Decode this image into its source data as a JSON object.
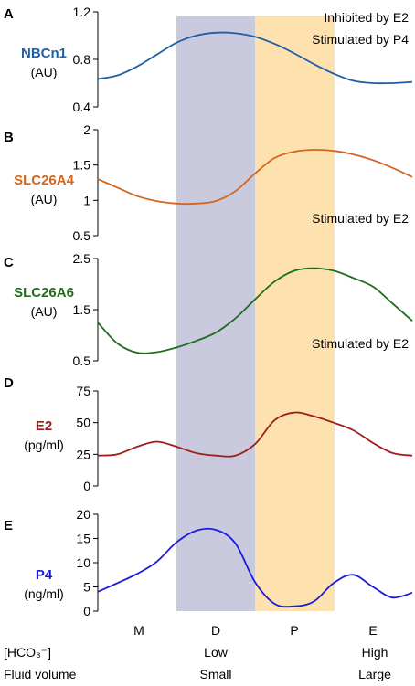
{
  "chart_data": {
    "type": "line",
    "xlabel": "",
    "x_categories": [
      "M",
      "D",
      "P",
      "E"
    ],
    "shaded_regions": [
      {
        "phase": "D",
        "color": "#b4b4d2"
      },
      {
        "phase": "P",
        "color": "#fcd896"
      }
    ],
    "bottom_rows": [
      {
        "label": "[HCO₃⁻]",
        "values": [
          "",
          "Low",
          "",
          "High"
        ]
      },
      {
        "label": "Fluid volume",
        "values": [
          "",
          "Small",
          "",
          "Large"
        ]
      }
    ],
    "panels": [
      {
        "letter": "A",
        "name": "NBCn1",
        "unit": "(AU)",
        "color": "#1f5fa8",
        "ylim": [
          0.4,
          1.2
        ],
        "yticks": [
          0.4,
          0.8,
          1.2
        ],
        "annotations": [
          "Inhibited  by E2",
          "Stimulated by P4"
        ],
        "x": [
          0,
          0.25,
          0.5,
          0.75,
          1.0,
          1.25,
          1.5,
          1.75,
          2.0,
          2.25,
          2.5,
          2.75,
          3.0,
          3.25,
          3.5,
          3.75,
          4.0
        ],
        "y": [
          0.635,
          0.665,
          0.74,
          0.84,
          0.94,
          1.0,
          1.025,
          1.02,
          0.99,
          0.93,
          0.85,
          0.76,
          0.68,
          0.62,
          0.6,
          0.6,
          0.61
        ]
      },
      {
        "letter": "B",
        "name": "SLC26A4",
        "unit": "(AU)",
        "color": "#d4651e",
        "ylim": [
          0.5,
          2.0
        ],
        "yticks": [
          0.5,
          1.0,
          1.5,
          2.0
        ],
        "annotations": [
          "Stimulated by E2"
        ],
        "x": [
          0,
          0.25,
          0.5,
          0.75,
          1.0,
          1.25,
          1.5,
          1.75,
          2.0,
          2.25,
          2.5,
          2.75,
          3.0,
          3.25,
          3.5,
          3.75,
          4.0
        ],
        "y": [
          1.3,
          1.18,
          1.06,
          0.99,
          0.955,
          0.955,
          0.99,
          1.13,
          1.38,
          1.6,
          1.69,
          1.715,
          1.7,
          1.65,
          1.57,
          1.46,
          1.33
        ]
      },
      {
        "letter": "C",
        "name": "SLC26A6",
        "unit": "(AU)",
        "color": "#1f6b1f",
        "ylim": [
          0.5,
          2.5
        ],
        "yticks": [
          0.5,
          1.5,
          2.5
        ],
        "annotations": [
          "Stimulated by E2"
        ],
        "x": [
          0,
          0.25,
          0.5,
          0.75,
          1.0,
          1.25,
          1.5,
          1.75,
          2.0,
          2.25,
          2.5,
          2.75,
          3.0,
          3.25,
          3.5,
          3.75,
          4.0
        ],
        "y": [
          1.25,
          0.84,
          0.66,
          0.67,
          0.76,
          0.89,
          1.05,
          1.33,
          1.7,
          2.05,
          2.26,
          2.31,
          2.26,
          2.12,
          1.95,
          1.62,
          1.28
        ]
      },
      {
        "letter": "D",
        "name": "E2",
        "unit": "(pg/ml)",
        "color": "#a01d1d",
        "ylim": [
          0,
          75
        ],
        "yticks": [
          0,
          25,
          50,
          75
        ],
        "annotations": [],
        "x": [
          0,
          0.25,
          0.5,
          0.75,
          1.0,
          1.25,
          1.5,
          1.75,
          2.0,
          2.25,
          2.5,
          2.75,
          3.0,
          3.25,
          3.5,
          3.75,
          4.0
        ],
        "y": [
          24,
          25,
          31,
          35,
          31,
          26,
          24,
          24,
          33,
          52,
          58,
          55,
          50,
          44,
          34,
          26,
          24
        ]
      },
      {
        "letter": "E",
        "name": "P4",
        "unit": "(ng/ml)",
        "color": "#1a1adb",
        "ylim": [
          0,
          20
        ],
        "yticks": [
          0,
          5,
          10,
          15,
          20
        ],
        "annotations": [],
        "x": [
          0,
          0.25,
          0.5,
          0.75,
          1.0,
          1.25,
          1.5,
          1.75,
          2.0,
          2.25,
          2.5,
          2.75,
          3.0,
          3.25,
          3.5,
          3.75,
          4.0
        ],
        "y": [
          4,
          5.8,
          7.7,
          10.2,
          14.2,
          16.6,
          16.8,
          14,
          6,
          1.5,
          1.0,
          2,
          5.8,
          7.5,
          5,
          2.8,
          3.8
        ]
      }
    ]
  }
}
